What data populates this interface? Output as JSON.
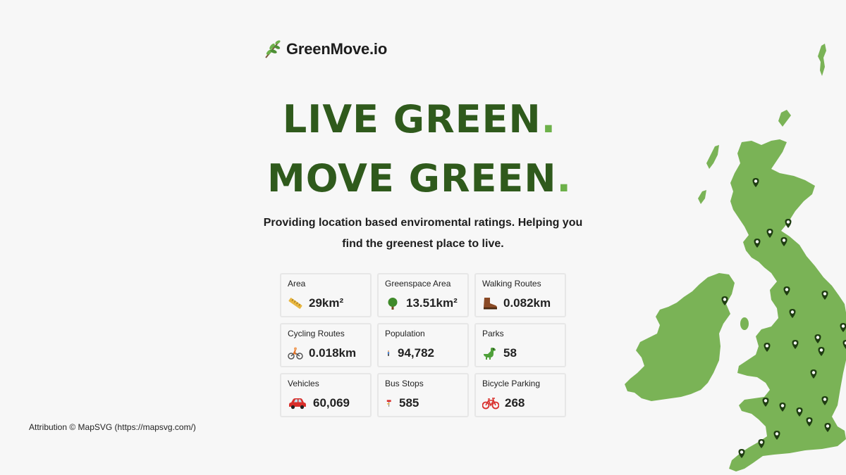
{
  "brand": {
    "name": "GreenMove.io",
    "icon": "leaf-branch-icon"
  },
  "hero": {
    "line1": "LIVE GREEN",
    "line2": "MOVE GREEN",
    "dot": ".",
    "tagline": "Providing location based enviromental ratings. Helping you find the greenest place to live."
  },
  "stats": [
    {
      "label": "Area",
      "value": "29km²",
      "icon": "ruler-icon"
    },
    {
      "label": "Greenspace Area",
      "value": "13.51km²",
      "icon": "tree-icon"
    },
    {
      "label": "Walking Routes",
      "value": "0.082km",
      "icon": "hiking-boot-icon"
    },
    {
      "label": "Cycling Routes",
      "value": "0.018km",
      "icon": "cyclist-icon"
    },
    {
      "label": "Population",
      "value": "94,782",
      "icon": "person-icon"
    },
    {
      "label": "Parks",
      "value": "58",
      "icon": "dinosaur-icon"
    },
    {
      "label": "Vehicles",
      "value": "60,069",
      "icon": "car-icon"
    },
    {
      "label": "Bus Stops",
      "value": "585",
      "icon": "bus-stop-icon"
    },
    {
      "label": "Bicycle Parking",
      "value": "268",
      "icon": "bicycle-icon"
    }
  ],
  "attribution": "Attribution © MapSVG (https://mapsvg.com/)",
  "colors": {
    "brand_dark": "#2f5a1c",
    "brand_accent": "#6db14a",
    "map_fill": "#7ab356",
    "pin": "#1f3d12"
  }
}
